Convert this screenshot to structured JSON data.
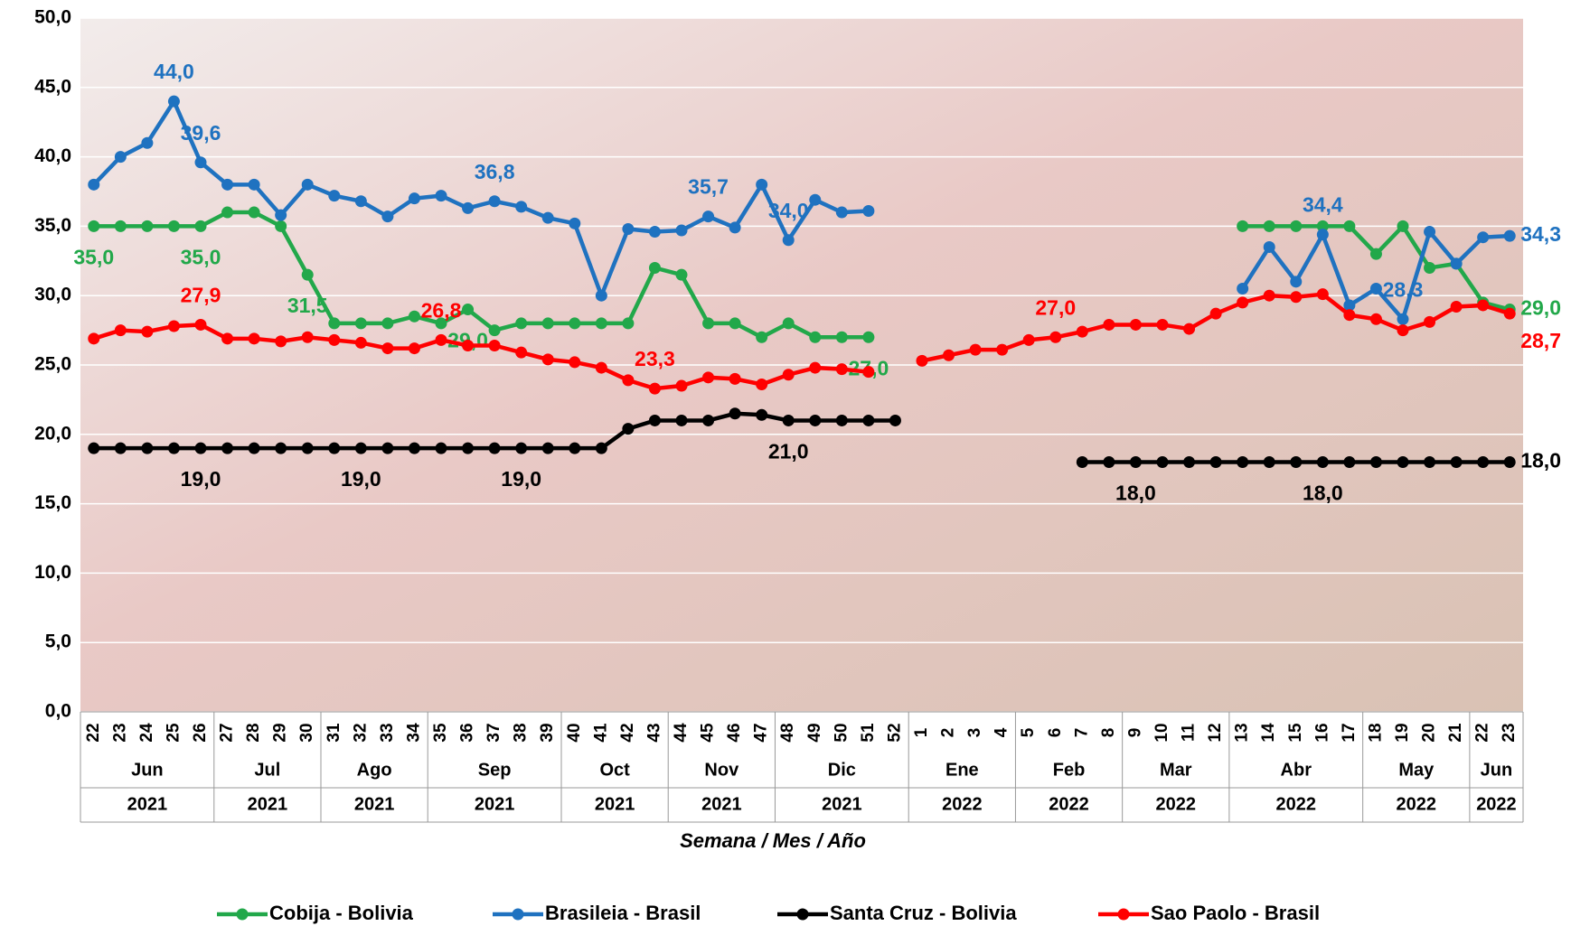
{
  "chart_data": {
    "type": "line",
    "x_title": "Semana / Mes / Año",
    "categories": [
      "22",
      "23",
      "24",
      "25",
      "26",
      "27",
      "28",
      "29",
      "30",
      "31",
      "32",
      "33",
      "34",
      "35",
      "36",
      "37",
      "38",
      "39",
      "40",
      "41",
      "42",
      "43",
      "44",
      "45",
      "46",
      "47",
      "48",
      "49",
      "50",
      "51",
      "52",
      "1",
      "2",
      "3",
      "4",
      "5",
      "6",
      "7",
      "8",
      "9",
      "10",
      "11",
      "12",
      "13",
      "14",
      "15",
      "16",
      "17",
      "18",
      "19",
      "20",
      "21",
      "22",
      "23"
    ],
    "months": [
      "Jun",
      "Jun",
      "Jun",
      "Jun",
      "Jun",
      "Jul",
      "Jul",
      "Jul",
      "Jul",
      "Ago",
      "Ago",
      "Ago",
      "Ago",
      "Sep",
      "Sep",
      "Sep",
      "Sep",
      "Sep",
      "Oct",
      "Oct",
      "Oct",
      "Oct",
      "Nov",
      "Nov",
      "Nov",
      "Nov",
      "Dic",
      "Dic",
      "Dic",
      "Dic",
      "Dic",
      "Ene",
      "Ene",
      "Ene",
      "Ene",
      "Feb",
      "Feb",
      "Feb",
      "Feb",
      "Mar",
      "Mar",
      "Mar",
      "Mar",
      "Abr",
      "Abr",
      "Abr",
      "Abr",
      "Abr",
      "May",
      "May",
      "May",
      "May",
      "Jun",
      "Jun"
    ],
    "years": [
      "2021",
      "2021",
      "2021",
      "2021",
      "2021",
      "2021",
      "2021",
      "2021",
      "2021",
      "2021",
      "2021",
      "2021",
      "2021",
      "2021",
      "2021",
      "2021",
      "2021",
      "2021",
      "2021",
      "2021",
      "2021",
      "2021",
      "2021",
      "2021",
      "2021",
      "2021",
      "2021",
      "2021",
      "2021",
      "2021",
      "2021",
      "2022",
      "2022",
      "2022",
      "2022",
      "2022",
      "2022",
      "2022",
      "2022",
      "2022",
      "2022",
      "2022",
      "2022",
      "2022",
      "2022",
      "2022",
      "2022",
      "2022",
      "2022",
      "2022",
      "2022",
      "2022",
      "2022",
      "2022"
    ],
    "ylim": [
      0,
      50
    ],
    "yticks": [
      {
        "value": 0,
        "label": "0,0"
      },
      {
        "value": 5,
        "label": "5,0"
      },
      {
        "value": 10,
        "label": "10,0"
      },
      {
        "value": 15,
        "label": "15,0"
      },
      {
        "value": 20,
        "label": "20,0"
      },
      {
        "value": 25,
        "label": "25,0"
      },
      {
        "value": 30,
        "label": "30,0"
      },
      {
        "value": 35,
        "label": "35,0"
      },
      {
        "value": 40,
        "label": "40,0"
      },
      {
        "value": 45,
        "label": "45,0"
      },
      {
        "value": 50,
        "label": "50,0"
      }
    ],
    "grid": true,
    "series": [
      {
        "name": "Cobija - Bolivia",
        "color": "#22a84a",
        "values": [
          35,
          35,
          35,
          35,
          35,
          36,
          36,
          35,
          31.5,
          28,
          28,
          28,
          28.5,
          28,
          29,
          27.5,
          28,
          28,
          28,
          28,
          28,
          32,
          31.5,
          28,
          28,
          27,
          28,
          27,
          27,
          27,
          null,
          null,
          null,
          null,
          null,
          null,
          null,
          null,
          null,
          null,
          null,
          null,
          null,
          35,
          35,
          35,
          35,
          35,
          33,
          35,
          32,
          32.3,
          29.5,
          29
        ],
        "value_labels": [
          "35,0",
          null,
          null,
          null,
          "35,0",
          null,
          null,
          null,
          "31,5",
          null,
          null,
          null,
          null,
          null,
          "29,0",
          null,
          null,
          null,
          null,
          null,
          null,
          null,
          null,
          null,
          null,
          null,
          null,
          null,
          null,
          "27,0",
          null,
          null,
          null,
          null,
          null,
          null,
          null,
          null,
          null,
          null,
          null,
          null,
          null,
          null,
          null,
          null,
          null,
          null,
          null,
          null,
          null,
          null,
          null,
          "29,0"
        ]
      },
      {
        "name": "Brasileia - Brasil",
        "color": "#1f72c0",
        "values": [
          38,
          40,
          41,
          44,
          39.6,
          38,
          38,
          35.8,
          38,
          37.2,
          36.8,
          35.7,
          37,
          37.2,
          36.3,
          36.8,
          36.4,
          35.6,
          35.2,
          30,
          34.8,
          34.6,
          34.7,
          35.7,
          34.9,
          38,
          34,
          36.9,
          36,
          36.1,
          null,
          null,
          null,
          null,
          null,
          null,
          null,
          null,
          null,
          null,
          null,
          null,
          null,
          30.5,
          33.5,
          31,
          34.4,
          29.3,
          30.5,
          28.3,
          34.6,
          32.3,
          34.2,
          34.3
        ],
        "value_labels": [
          null,
          null,
          null,
          "44,0",
          "39,6",
          null,
          null,
          null,
          null,
          null,
          null,
          null,
          null,
          null,
          null,
          "36,8",
          null,
          null,
          null,
          null,
          null,
          null,
          null,
          "35,7",
          null,
          null,
          "34,0",
          null,
          null,
          null,
          null,
          null,
          null,
          null,
          null,
          null,
          null,
          null,
          null,
          null,
          null,
          null,
          null,
          null,
          null,
          null,
          "34,4",
          null,
          null,
          "28,3",
          null,
          null,
          null,
          "34,3"
        ]
      },
      {
        "name": "Santa Cruz - Bolivia",
        "color": "#000000",
        "values": [
          19,
          19,
          19,
          19,
          19,
          19,
          19,
          19,
          19,
          19,
          19,
          19,
          19,
          19,
          19,
          19,
          19,
          19,
          19,
          19,
          20.4,
          21,
          21,
          21,
          21.5,
          21.4,
          21,
          21,
          21,
          21,
          21,
          null,
          null,
          null,
          null,
          null,
          null,
          18,
          18,
          18,
          18,
          18,
          18,
          18,
          18,
          18,
          18,
          18,
          18,
          18,
          18,
          18,
          18,
          18
        ],
        "value_labels": [
          null,
          null,
          null,
          null,
          "19,0",
          null,
          null,
          null,
          null,
          null,
          "19,0",
          null,
          null,
          null,
          null,
          null,
          "19,0",
          null,
          null,
          null,
          null,
          null,
          null,
          null,
          null,
          null,
          "21,0",
          null,
          null,
          null,
          null,
          null,
          null,
          null,
          null,
          null,
          null,
          null,
          null,
          "18,0",
          null,
          null,
          null,
          null,
          null,
          null,
          "18,0",
          null,
          null,
          null,
          null,
          null,
          null,
          "18,0"
        ]
      },
      {
        "name": "Sao Paolo - Brasil",
        "color": "#ff0000",
        "values": [
          26.9,
          27.5,
          27.4,
          27.8,
          27.9,
          26.9,
          26.9,
          26.7,
          27,
          26.8,
          26.6,
          26.2,
          26.2,
          26.8,
          26.4,
          26.4,
          25.9,
          25.4,
          25.2,
          24.8,
          23.9,
          23.3,
          23.5,
          24.1,
          24,
          23.6,
          24.3,
          24.8,
          24.7,
          24.5,
          null,
          25.3,
          25.7,
          26.1,
          26.1,
          26.8,
          27,
          27.4,
          27.9,
          27.9,
          27.9,
          27.6,
          28.7,
          29.5,
          30,
          29.9,
          30.1,
          28.6,
          28.3,
          27.5,
          28.1,
          29.2,
          29.3,
          28.7
        ],
        "value_labels": [
          null,
          null,
          null,
          null,
          "27,9",
          null,
          null,
          null,
          null,
          null,
          null,
          null,
          null,
          "26,8",
          null,
          null,
          null,
          null,
          null,
          null,
          null,
          "23,3",
          null,
          null,
          null,
          null,
          null,
          null,
          null,
          null,
          null,
          null,
          null,
          null,
          null,
          null,
          "27,0",
          null,
          null,
          null,
          null,
          null,
          null,
          null,
          null,
          null,
          null,
          null,
          null,
          null,
          null,
          null,
          null,
          "28,7"
        ]
      }
    ]
  }
}
